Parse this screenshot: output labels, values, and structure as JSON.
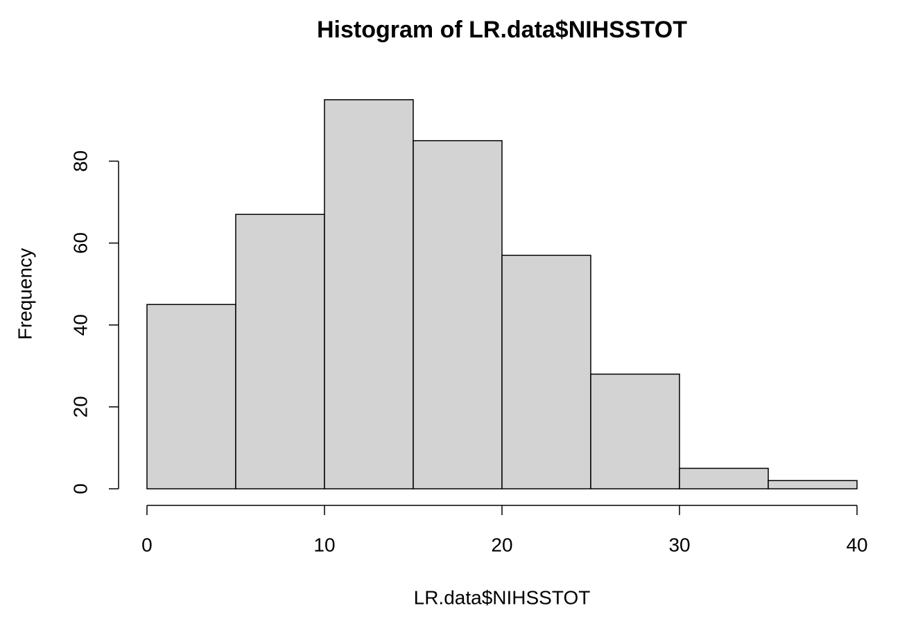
{
  "chart_data": {
    "type": "histogram",
    "title": "Histogram of LR.data$NIHSSTOT",
    "x_label": "LR.data$NIHSSTOT",
    "y_label": "Frequency",
    "bins": [
      0,
      5,
      10,
      15,
      20,
      25,
      30,
      35,
      40
    ],
    "values": [
      45,
      67,
      95,
      85,
      57,
      28,
      5,
      2
    ],
    "color": "#d3d3d3",
    "xlim": [
      -1.6,
      41.6
    ],
    "ylim": [
      -3.8,
      98.8
    ],
    "xticks": [
      0,
      10,
      20,
      30,
      40
    ],
    "yticks": [
      0,
      20,
      40,
      60,
      80
    ]
  }
}
